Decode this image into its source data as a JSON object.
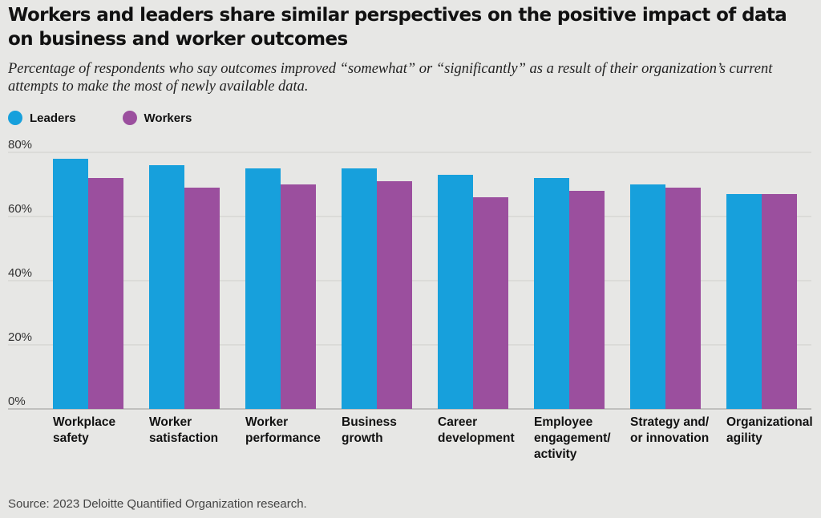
{
  "title": "Workers and leaders share similar perspectives on the positive impact of data on business and worker outcomes",
  "subtitle": "Percentage of respondents who say outcomes improved “somewhat” or “significantly” as a result of their organization’s current attempts to make the most of newly available data.",
  "source": "Source: 2023 Deloitte Quantified Organization research.",
  "colors": {
    "leaders": "#17a0dc",
    "workers": "#9b4f9e",
    "grid": "#cfcfcc",
    "background": "#e7e7e5"
  },
  "chart_data": {
    "type": "bar",
    "title": "Workers and leaders share similar perspectives on the positive impact of data on business and worker outcomes",
    "xlabel": "",
    "ylabel": "",
    "ylim": [
      0,
      80
    ],
    "yticks": [
      "0%",
      "20%",
      "40%",
      "60%",
      "80%"
    ],
    "ytick_values": [
      0,
      20,
      40,
      60,
      80
    ],
    "grid": true,
    "legend_position": "top-left",
    "categories": [
      [
        "Workplace",
        "safety"
      ],
      [
        "Worker",
        "satisfaction"
      ],
      [
        "Worker",
        "performance"
      ],
      [
        "Business",
        "growth"
      ],
      [
        "Career",
        "development"
      ],
      [
        "Employee",
        "engagement/",
        "activity"
      ],
      [
        "Strategy and/",
        "or innovation"
      ],
      [
        "Organizational",
        "agility"
      ]
    ],
    "series": [
      {
        "name": "Leaders",
        "color": "#17a0dc",
        "values": [
          78,
          76,
          75,
          75,
          73,
          72,
          70,
          67
        ]
      },
      {
        "name": "Workers",
        "color": "#9b4f9e",
        "values": [
          72,
          69,
          70,
          71,
          66,
          68,
          69,
          67
        ]
      }
    ]
  }
}
